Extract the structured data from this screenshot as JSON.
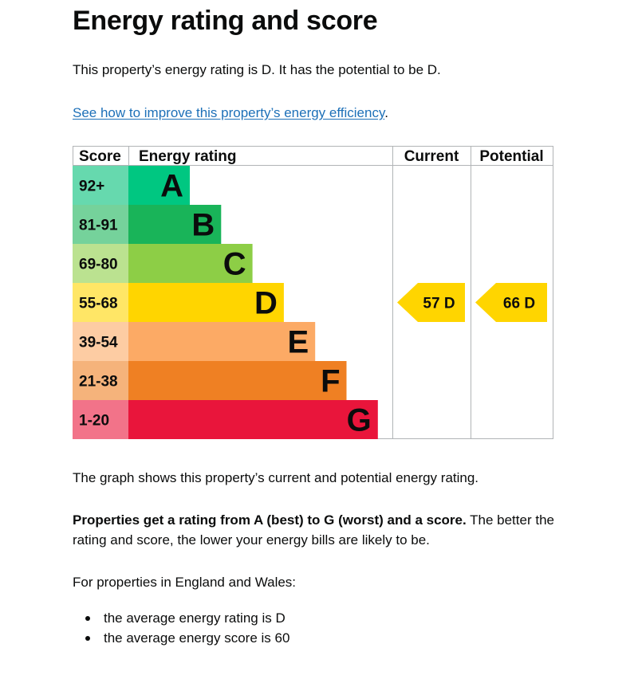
{
  "page": {
    "title": "Energy rating and score",
    "rating_text": "This property’s energy rating is D. It has the potential to be D.",
    "improve_link": "See how to improve this property’s energy efficiency",
    "improve_link_suffix": ".",
    "graph_text": "The graph shows this property’s current and potential energy rating.",
    "props_bold": "Properties get a rating from A (best) to G (worst) and a score.",
    "props_rest": " The better the rating and score, the lower your energy bills are likely to be.",
    "region_text": "For properties in England and Wales:",
    "averages": [
      "the average energy rating is D",
      "the average energy score is 60"
    ]
  },
  "chart_data": {
    "type": "bar",
    "headers": {
      "score": "Score",
      "rating": "Energy rating",
      "current": "Current",
      "potential": "Potential"
    },
    "bands": [
      {
        "letter": "A",
        "range": "92+",
        "bar_color": "#00c781",
        "score_bg": "#66d9ae"
      },
      {
        "letter": "B",
        "range": "81-91",
        "bar_color": "#19b459",
        "score_bg": "#75d29b"
      },
      {
        "letter": "C",
        "range": "69-80",
        "bar_color": "#8dce46",
        "score_bg": "#bbe290"
      },
      {
        "letter": "D",
        "range": "55-68",
        "bar_color": "#ffd500",
        "score_bg": "#ffe666"
      },
      {
        "letter": "E",
        "range": "39-54",
        "bar_color": "#fcaa65",
        "score_bg": "#fdcca3"
      },
      {
        "letter": "F",
        "range": "21-38",
        "bar_color": "#ef8023",
        "score_bg": "#f5b37b"
      },
      {
        "letter": "G",
        "range": "1-20",
        "bar_color": "#e9153b",
        "score_bg": "#f27389"
      }
    ],
    "current": {
      "score": 57,
      "letter": "D",
      "label": "57  D"
    },
    "potential": {
      "score": 66,
      "letter": "D",
      "label": "66  D"
    }
  }
}
